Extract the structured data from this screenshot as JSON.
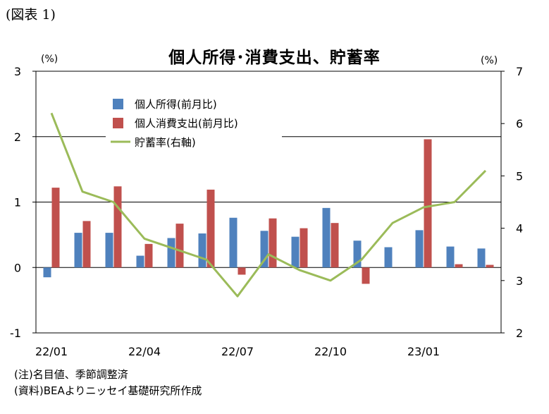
{
  "figure_label": "(図表 1)",
  "notes": [
    "(注)名目値、季節調整済",
    "(資料)BEAよりニッセイ基礎研究所作成"
  ],
  "chart_data": {
    "type": "bar",
    "title": "個人所得･消費支出、貯蓄率",
    "y_unit_left": "(%)",
    "y_unit_right": "(%)",
    "categories": [
      "22/01",
      "22/02",
      "22/03",
      "22/04",
      "22/05",
      "22/06",
      "22/07",
      "22/08",
      "22/09",
      "22/10",
      "22/11",
      "22/12",
      "23/01",
      "23/02",
      "23/03"
    ],
    "x_tick_labels": [
      "22/01",
      "22/04",
      "22/07",
      "22/10",
      "23/01"
    ],
    "ylim": [
      -1,
      3
    ],
    "y_ticks": [
      "-1",
      "0",
      "1",
      "2",
      "3"
    ],
    "y2lim": [
      2,
      7
    ],
    "y2_ticks": [
      "2",
      "3",
      "4",
      "5",
      "6",
      "7"
    ],
    "grid": true,
    "legend_position": "top-left",
    "series": [
      {
        "name": "個人所得(前月比)",
        "type": "bar",
        "axis": "left",
        "color": "#4f81bd",
        "values": [
          -0.15,
          0.53,
          0.53,
          0.18,
          0.45,
          0.52,
          0.76,
          0.56,
          0.47,
          0.91,
          0.41,
          0.31,
          0.57,
          0.32,
          0.29
        ]
      },
      {
        "name": "個人消費支出(前月比)",
        "type": "bar",
        "axis": "left",
        "color": "#c0504d",
        "values": [
          1.22,
          0.71,
          1.24,
          0.36,
          0.67,
          1.19,
          -0.11,
          0.75,
          0.6,
          0.68,
          -0.25,
          null,
          1.96,
          0.05,
          0.04
        ]
      },
      {
        "name": "貯蓄率(右軸)",
        "type": "line",
        "axis": "right",
        "color": "#9bbb59",
        "values": [
          6.2,
          4.7,
          4.5,
          3.8,
          3.6,
          3.4,
          2.7,
          3.5,
          3.2,
          3.0,
          3.4,
          4.1,
          4.4,
          4.5,
          5.1
        ]
      }
    ]
  }
}
